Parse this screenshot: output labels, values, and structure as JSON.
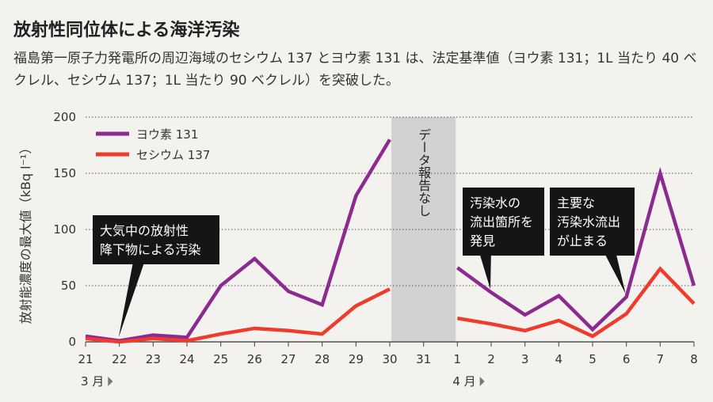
{
  "title": "放射性同位体による海洋汚染",
  "subtitle": "福島第一原子力発電所の周辺海域のセシウム 137 とヨウ素 131 は、法定基準値（ヨウ素 131；1L 当たり 40 ベクレル、セシウム 137；1L 当たり 90 ベクレル）を突破した。",
  "chart_data": {
    "type": "line",
    "ylabel": "放射能濃度の最大値（kBq l⁻¹）",
    "ylim": [
      0,
      200
    ],
    "yticks": [
      0,
      50,
      100,
      150,
      200
    ],
    "x": [
      "21",
      "22",
      "23",
      "24",
      "25",
      "26",
      "27",
      "28",
      "29",
      "30",
      "31",
      "1",
      "2",
      "3",
      "4",
      "5",
      "6",
      "7",
      "8"
    ],
    "month_labels": [
      {
        "text": "3 月",
        "at": "21"
      },
      {
        "text": "4 月",
        "at": "1"
      }
    ],
    "grid": "horizontal-dotted",
    "legend_position": "top-left",
    "series": [
      {
        "name": "ヨウ素 131",
        "color": "#8b2a8f",
        "values": [
          5,
          1,
          6,
          4,
          50,
          74,
          45,
          33,
          130,
          180,
          null,
          66,
          44,
          24,
          41,
          11,
          40,
          150,
          50
        ]
      },
      {
        "name": "セシウム 137",
        "color": "#ef3b2c",
        "values": [
          3,
          0,
          3,
          1,
          7,
          12,
          10,
          7,
          32,
          47,
          null,
          21,
          16,
          10,
          19,
          5,
          25,
          65,
          34
        ]
      }
    ],
    "no_data": {
      "from": "30",
      "to": "1",
      "label": "データ報告なし"
    },
    "annotations": [
      {
        "text": [
          "大気中の放射性",
          "降下物による汚染"
        ],
        "points_to": "22"
      },
      {
        "text": [
          "汚染水の",
          "流出箇所を",
          "発見"
        ],
        "points_to": "2"
      },
      {
        "text": [
          "主要な",
          "汚染水流出",
          "が止まる"
        ],
        "points_to": "6"
      }
    ]
  }
}
